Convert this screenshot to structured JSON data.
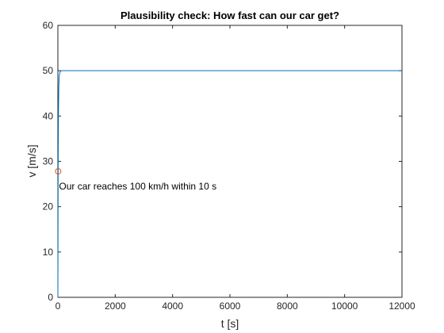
{
  "chart_data": {
    "type": "line",
    "title": "Plausibility check: How fast can our car get?",
    "xlabel": "t [s]",
    "ylabel": "v [m/s]",
    "xlim": [
      0,
      12000
    ],
    "ylim": [
      0,
      60
    ],
    "xticks": [
      0,
      2000,
      4000,
      6000,
      8000,
      10000,
      12000
    ],
    "yticks": [
      0,
      10,
      20,
      30,
      40,
      50,
      60
    ],
    "grid": false,
    "series": [
      {
        "color": "#0072BD",
        "x": [
          0,
          5,
          10,
          20,
          30,
          40,
          50,
          60,
          80,
          100,
          120,
          150,
          200,
          300,
          500,
          1000,
          2000,
          4000,
          6000,
          8000,
          10000,
          12000
        ],
        "y": [
          0,
          14,
          28,
          40,
          45.5,
          47.8,
          48.8,
          49.3,
          49.7,
          49.9,
          50.0,
          50.0,
          50.0,
          50.0,
          50.0,
          50.0,
          50.0,
          50.0,
          50.0,
          50.0,
          50.0,
          50.0
        ]
      }
    ],
    "markers": [
      {
        "x": 10,
        "y": 27.8,
        "shape": "circle",
        "color": "#D95319"
      }
    ],
    "annotations": [
      {
        "text": "Our car reaches 100 km/h within 10 s",
        "x": 10,
        "y": 24.5
      }
    ]
  }
}
